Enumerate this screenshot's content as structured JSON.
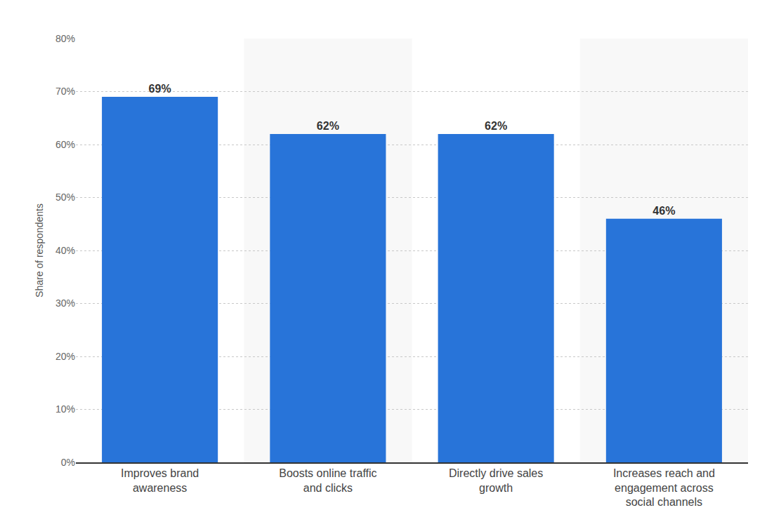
{
  "chart_data": {
    "type": "bar",
    "y_label": "Share of respondents",
    "categories": [
      "Improves brand awareness",
      "Boosts online traffic and clicks",
      "Directly drive sales growth",
      "Increases reach and engagement across social channels"
    ],
    "values": [
      69,
      62,
      62,
      46
    ],
    "value_labels": [
      "69%",
      "62%",
      "62%",
      "46%"
    ],
    "data_labels": true,
    "color": "#2874d9",
    "ylim": [
      0,
      80
    ],
    "yticks": [
      {
        "value": 0,
        "label": "0%"
      },
      {
        "value": 10,
        "label": "10%"
      },
      {
        "value": 20,
        "label": "20%"
      },
      {
        "value": 30,
        "label": "30%"
      },
      {
        "value": 40,
        "label": "40%"
      },
      {
        "value": 50,
        "label": "50%"
      },
      {
        "value": 60,
        "label": "60%"
      },
      {
        "value": 70,
        "label": "70%"
      },
      {
        "value": 80,
        "label": "80%"
      }
    ],
    "grid": true
  }
}
